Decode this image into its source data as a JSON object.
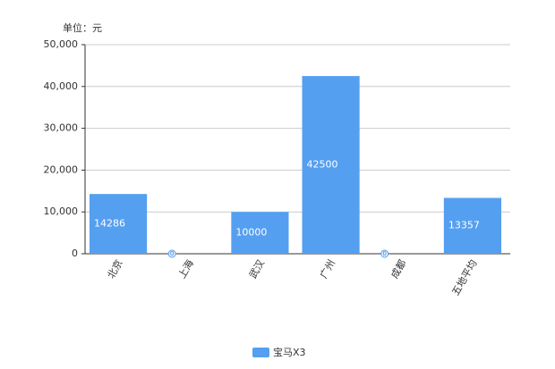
{
  "chart_data": {
    "type": "bar",
    "y_label": "单位：元",
    "categories": [
      "北京",
      "上海",
      "武汉",
      "广州",
      "成都",
      "五地平均"
    ],
    "series": [
      {
        "name": "宝马X3",
        "color": "#559ff0",
        "values": [
          14286,
          0,
          10000,
          42500,
          0,
          13357
        ]
      }
    ],
    "ylim": [
      0,
      50000
    ],
    "yticks": [
      0,
      {
        "value": 10000,
        "label": "10,000"
      },
      {
        "value": 20000,
        "label": "20,000"
      },
      {
        "value": 30000,
        "label": "30,000"
      },
      {
        "value": 40000,
        "label": "40,000"
      },
      {
        "value": 50000,
        "label": "50,000"
      }
    ],
    "grid": true,
    "legend": "bottom"
  }
}
